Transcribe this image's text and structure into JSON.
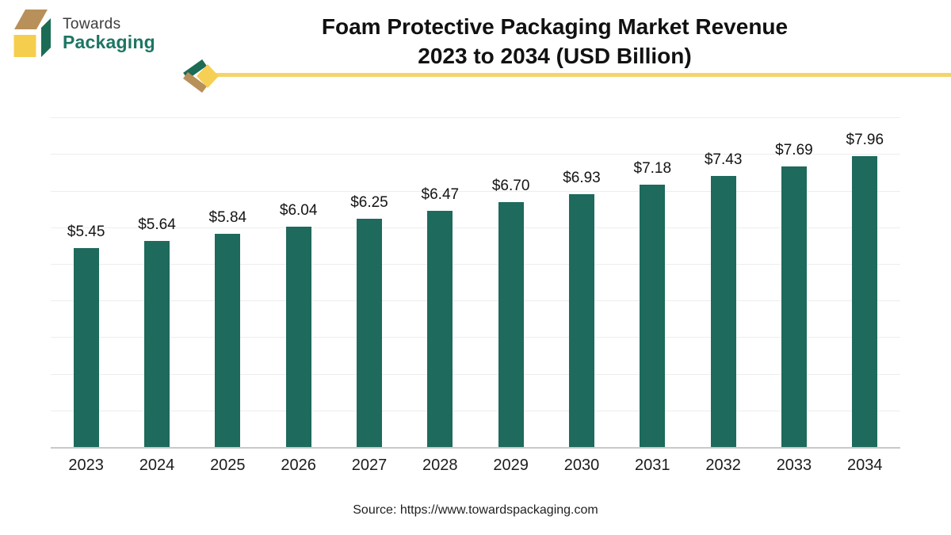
{
  "logo": {
    "line1": "Towards",
    "line2": "Packaging"
  },
  "title": {
    "line1": "Foam Protective Packaging Market Revenue",
    "line2": "2023 to 2034 (USD Billion)"
  },
  "source": "Source: https://www.towardspackaging.com",
  "colors": {
    "bar": "#1e6a5c",
    "grid": "#ededed",
    "axis": "#c9c9c9",
    "accent_yellow": "#f5d469",
    "accent_yellow_deep": "#f6cf55",
    "accent_tan": "#b8905a",
    "accent_green": "#1c6b55",
    "logo_text_green": "#1d7664"
  },
  "chart_data": {
    "type": "bar",
    "title": "Foam Protective Packaging Market Revenue 2023 to 2034 (USD Billion)",
    "categories": [
      "2023",
      "2024",
      "2025",
      "2026",
      "2027",
      "2028",
      "2029",
      "2030",
      "2031",
      "2032",
      "2033",
      "2034"
    ],
    "values": [
      5.45,
      5.64,
      5.84,
      6.04,
      6.25,
      6.47,
      6.7,
      6.93,
      7.18,
      7.43,
      7.69,
      7.96
    ],
    "value_labels": [
      "$5.45",
      "$5.64",
      "$5.84",
      "$6.04",
      "$6.25",
      "$6.47",
      "$6.70",
      "$6.93",
      "$7.18",
      "$7.43",
      "$7.69",
      "$7.96"
    ],
    "xlabel": "",
    "ylabel": "",
    "ylim": [
      0,
      9
    ],
    "grid_step": 1,
    "grid": true,
    "legend": false,
    "bar_color": "#1e6a5c"
  }
}
